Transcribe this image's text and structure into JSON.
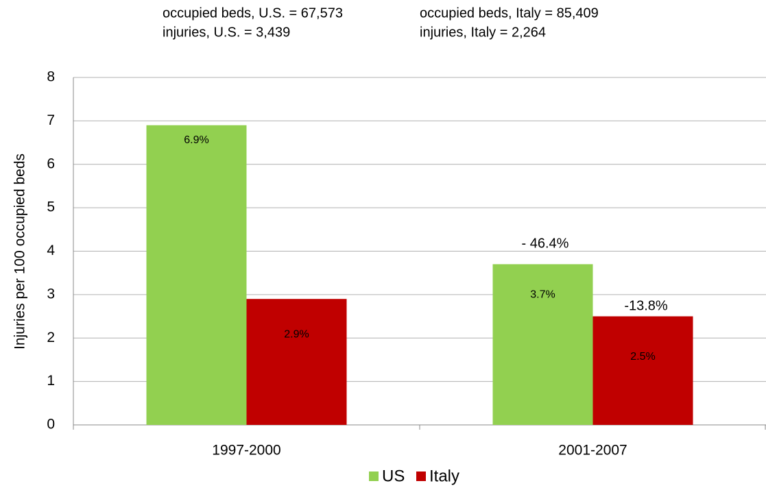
{
  "chart_data": {
    "type": "bar",
    "annotations": [
      "occupied beds, U.S. = 67,573",
      "occupied beds, Italy = 85,409",
      "injuries, U.S. =  3,439",
      "injuries, Italy = 2,264",
      "- 46.4%",
      "-13.8%"
    ],
    "ylabel": "Injuries per 100 occupied  beds",
    "categories": [
      "1997-2000",
      "2001-2007"
    ],
    "series": [
      {
        "name": "US",
        "color": "#92d050",
        "values": [
          6.9,
          3.7
        ],
        "value_labels": [
          "6.9%",
          "3.7%"
        ]
      },
      {
        "name": "Italy",
        "color": "#c00000",
        "values": [
          2.9,
          2.5
        ],
        "value_labels": [
          "2.9%",
          "2.5%"
        ]
      }
    ],
    "ylim": [
      0,
      8
    ],
    "yticks": [
      0,
      1,
      2,
      3,
      4,
      5,
      6,
      7,
      8
    ],
    "grid": true,
    "legend": "bottom"
  }
}
